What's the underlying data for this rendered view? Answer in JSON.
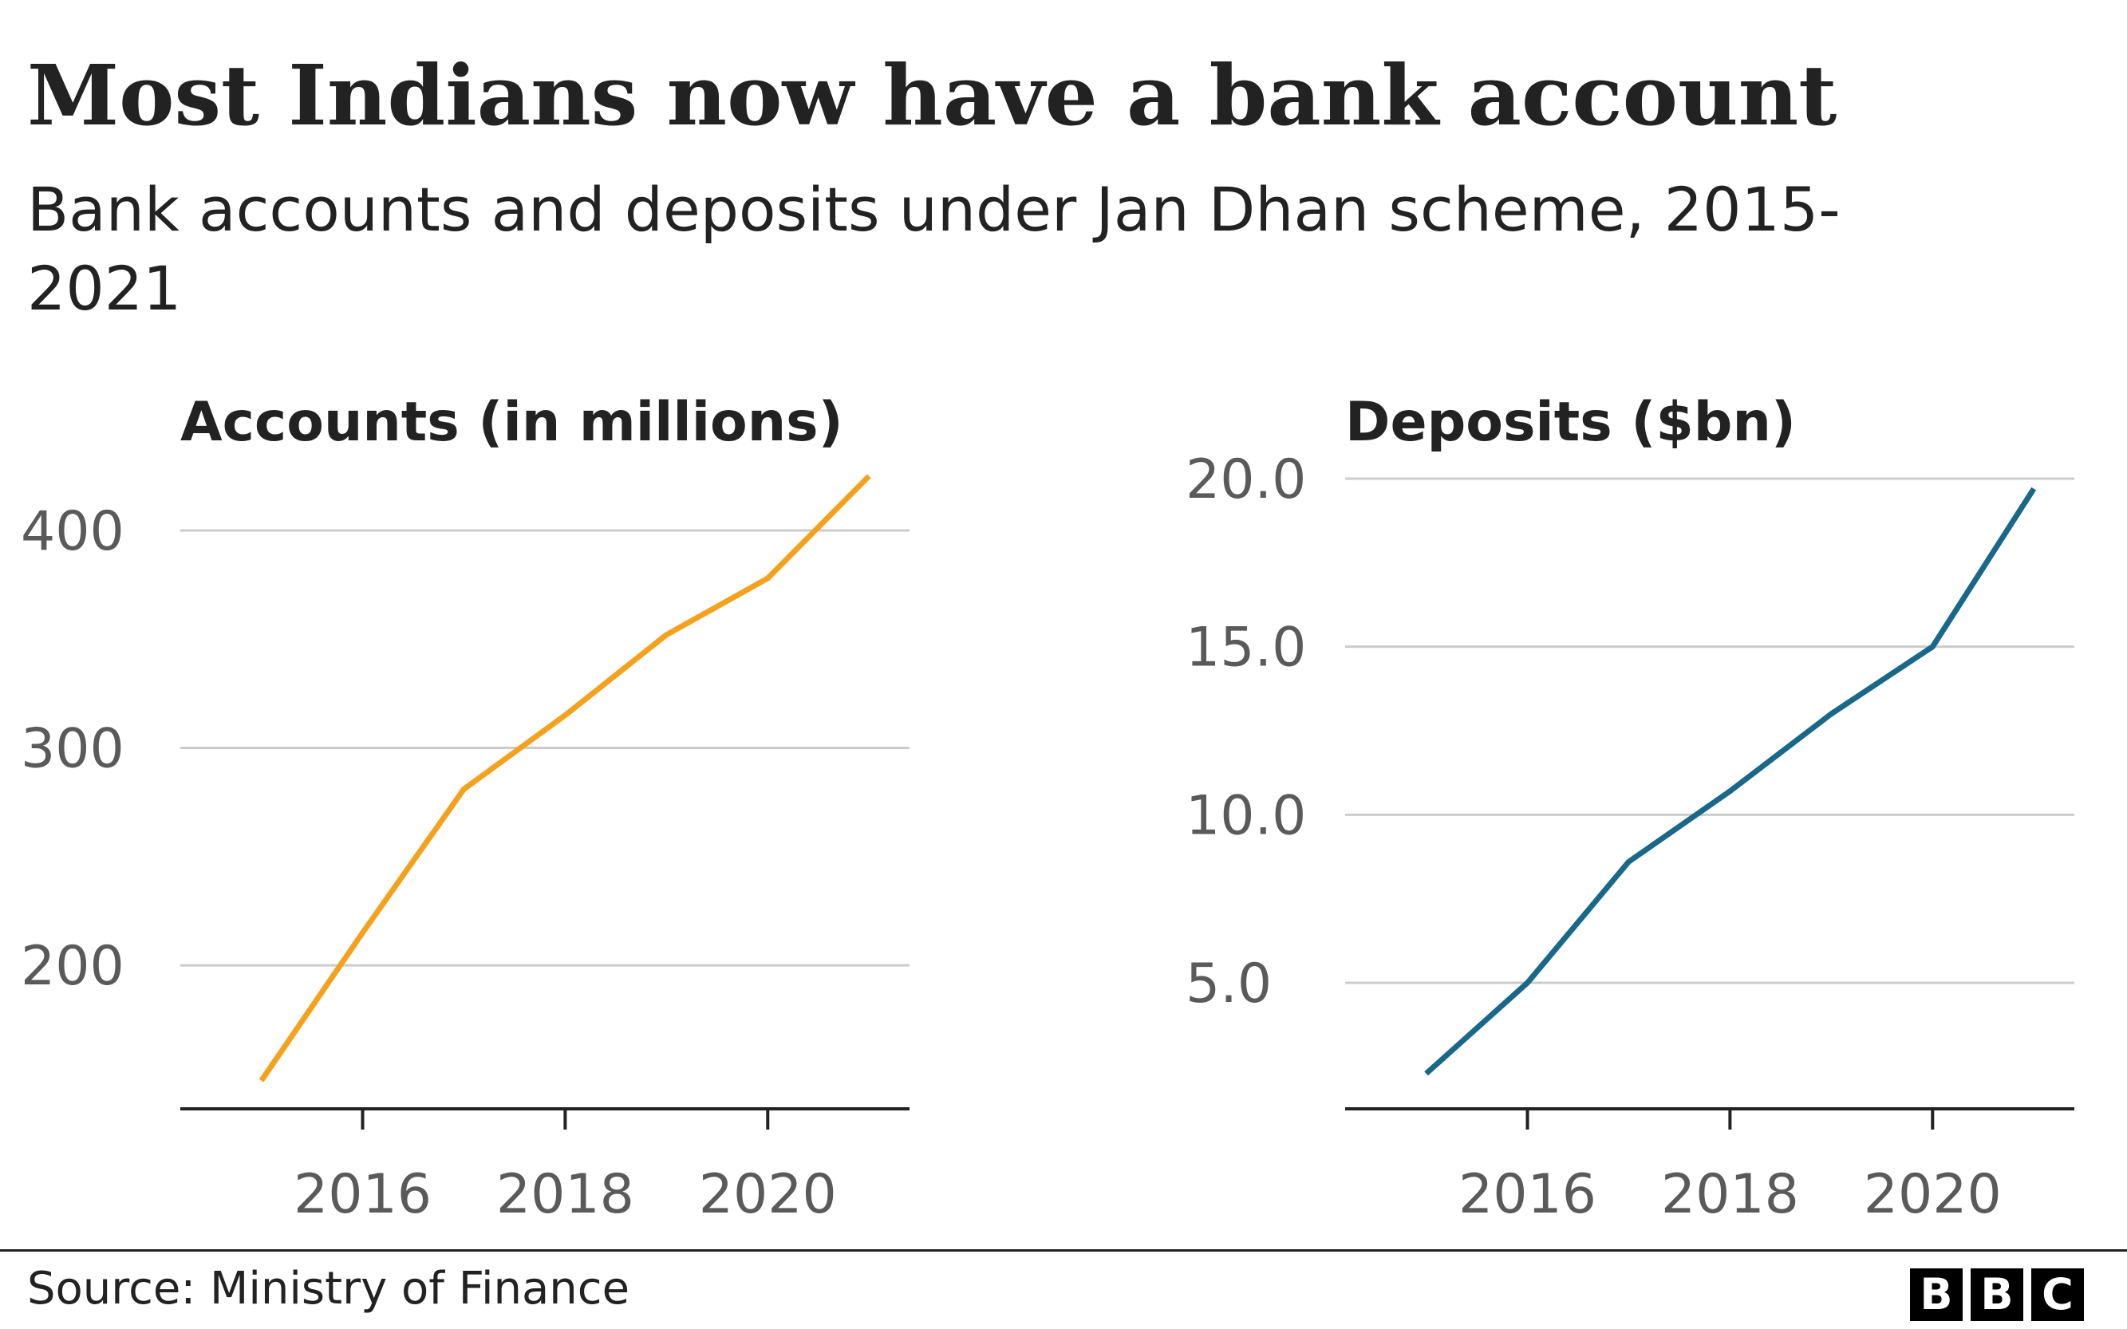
{
  "header": {
    "title": "Most Indians now have a bank account",
    "subtitle": "Bank accounts and deposits under Jan Dhan scheme, 2015-2021"
  },
  "footer": {
    "source": "Source: Ministry of Finance",
    "logo_letters": [
      "B",
      "B",
      "C"
    ]
  },
  "colors": {
    "accounts_line": "#F4A21D",
    "deposits_line": "#1A6889",
    "gridline": "#CCCCCC",
    "axis": "#222222",
    "tick_label": "#5A5A5A"
  },
  "chart_data": [
    {
      "type": "line",
      "title": "Accounts (in millions)",
      "x": [
        2015,
        2016,
        2017,
        2018,
        2019,
        2020,
        2021
      ],
      "series": [
        {
          "values": [
            147,
            215,
            281,
            315,
            352,
            378,
            425
          ]
        }
      ],
      "xticks": [
        2016,
        2018,
        2020
      ],
      "xtick_labels": [
        "2016",
        "2018",
        "2020"
      ],
      "yticks": [
        200,
        300,
        400
      ],
      "ytick_labels": [
        "200",
        "300",
        "400"
      ],
      "xlim": [
        2014.2,
        2021.4
      ],
      "ylim": [
        134,
        433
      ],
      "grid": true,
      "legend": "none"
    },
    {
      "type": "line",
      "title": "Deposits ($bn)",
      "x": [
        2015,
        2016,
        2017,
        2018,
        2019,
        2020,
        2021
      ],
      "series": [
        {
          "values": [
            2.3,
            5.0,
            8.6,
            10.7,
            13.0,
            15.0,
            19.7
          ]
        }
      ],
      "xticks": [
        2016,
        2018,
        2020
      ],
      "xtick_labels": [
        "2016",
        "2018",
        "2020"
      ],
      "yticks": [
        5.0,
        10.0,
        15.0,
        20.0
      ],
      "ytick_labels": [
        "5.0",
        "10.0",
        "15.0",
        "20.0"
      ],
      "xlim": [
        2014.2,
        2021.4
      ],
      "ylim": [
        1.25,
        20.0
      ],
      "grid": true,
      "legend": "none"
    }
  ]
}
